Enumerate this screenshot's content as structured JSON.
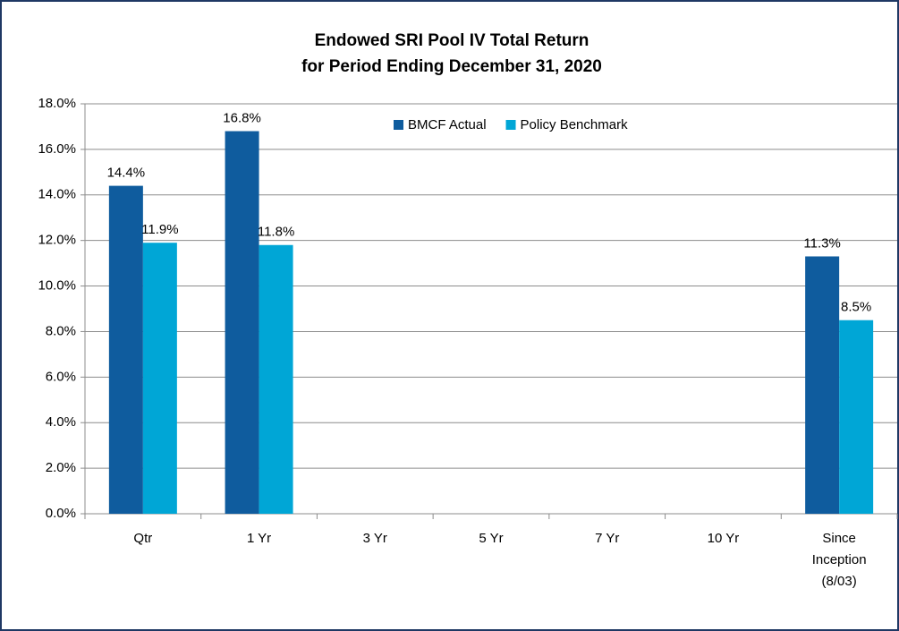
{
  "chart_data": {
    "type": "bar",
    "title": [
      "Endowed SRI Pool IV Total Return",
      "for Period Ending December 31, 2020"
    ],
    "categories": [
      "Qtr",
      "1 Yr",
      "3 Yr",
      "5 Yr",
      "7 Yr",
      "10 Yr",
      "Since Inception (8/03)"
    ],
    "series": [
      {
        "name": "BMCF Actual",
        "color": "#0f5c9e",
        "values": [
          14.4,
          16.8,
          null,
          null,
          null,
          null,
          11.3
        ],
        "value_labels": [
          "14.4%",
          "16.8%",
          null,
          null,
          null,
          null,
          "11.3%"
        ]
      },
      {
        "name": "Policy Benchmark",
        "color": "#00a6d6",
        "values": [
          11.9,
          11.8,
          null,
          null,
          null,
          null,
          8.5
        ],
        "value_labels": [
          "11.9%",
          "11.8%",
          null,
          null,
          null,
          null,
          "8.5%"
        ]
      }
    ],
    "ylim": [
      0,
      18
    ],
    "yticks": [
      {
        "value": 0,
        "label": "0.0%"
      },
      {
        "value": 2,
        "label": "2.0%"
      },
      {
        "value": 4,
        "label": "4.0%"
      },
      {
        "value": 6,
        "label": "6.0%"
      },
      {
        "value": 8,
        "label": "8.0%"
      },
      {
        "value": 10,
        "label": "10.0%"
      },
      {
        "value": 12,
        "label": "12.0%"
      },
      {
        "value": 14,
        "label": "14.0%"
      },
      {
        "value": 16,
        "label": "16.0%"
      },
      {
        "value": 18,
        "label": "18.0%"
      }
    ],
    "grid": true,
    "legend": "top"
  }
}
